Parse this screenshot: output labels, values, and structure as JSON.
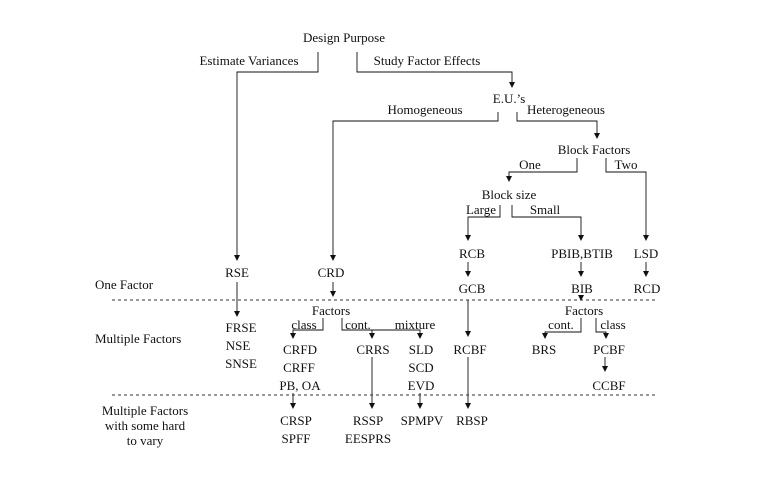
{
  "title": "Design Purpose",
  "branches": {
    "estimate_variances": "Estimate Variances",
    "study_factor_effects": "Study Factor Effects",
    "eus": "E.U.’s",
    "homogeneous": "Homogeneous",
    "heterogeneous": "Heterogeneous",
    "block_factors": "Block Factors",
    "one": "One",
    "two": "Two",
    "block_size": "Block size",
    "large": "Large",
    "small": "Small",
    "factors": "Factors",
    "class": "class",
    "cont": "cont.",
    "mixture": "mixture"
  },
  "rows": {
    "one_factor": "One Factor",
    "multiple_factors": "Multiple Factors",
    "multiple_hard": "Multiple Factors\nwith some hard\nto vary"
  },
  "designs": {
    "rse": "RSE",
    "crd": "CRD",
    "rcb": "RCB",
    "pbib_btib": "PBIB,BTIB",
    "lsd": "LSD",
    "gcb": "GCB",
    "bib": "BIB",
    "rcd": "RCD",
    "frse": "FRSE",
    "nse": "NSE",
    "snse": "SNSE",
    "crfd": "CRFD",
    "crff": "CRFF",
    "pb_oa": "PB, OA",
    "crrs": "CRRS",
    "sld": "SLD",
    "scd": "SCD",
    "evd": "EVD",
    "rcbf": "RCBF",
    "brs": "BRS",
    "pcbf": "PCBF",
    "ccbf": "CCBF",
    "crsp": "CRSP",
    "spff": "SPFF",
    "rssp": "RSSP",
    "eesprs": "EESPRS",
    "spmpv": "SPMPV",
    "rbsp": "RBSP"
  }
}
